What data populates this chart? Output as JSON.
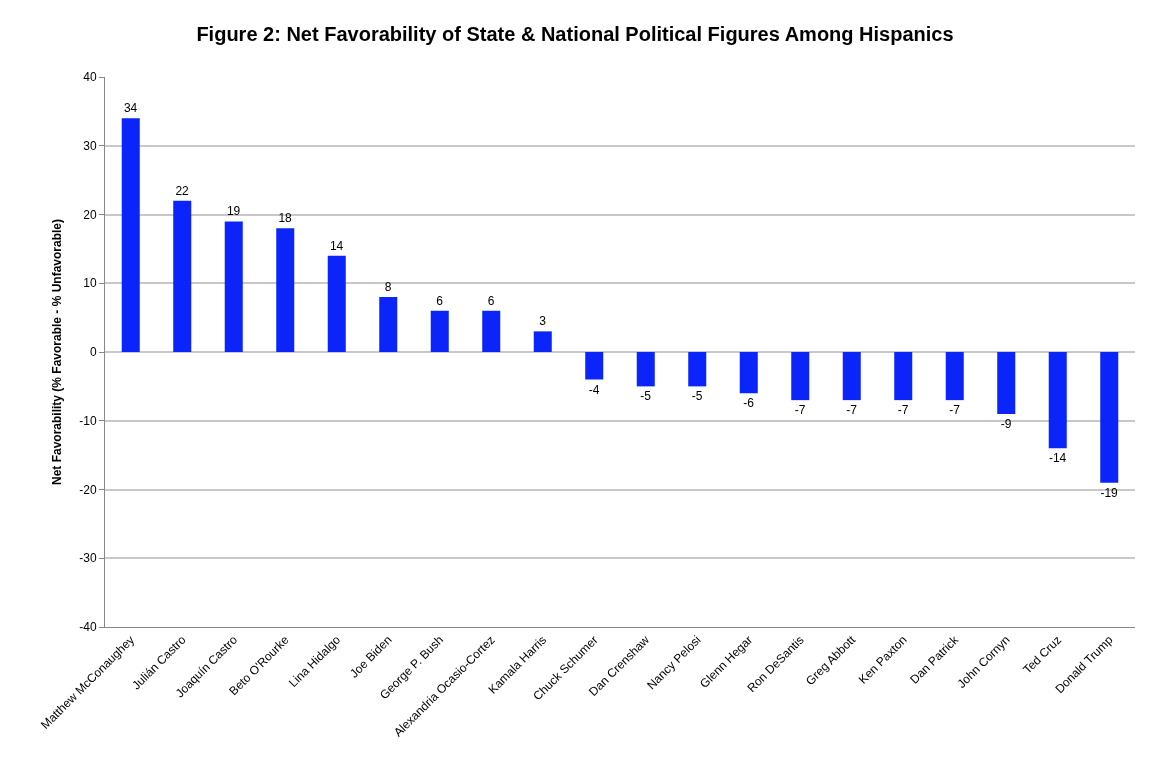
{
  "chart_data": {
    "type": "bar",
    "title": "Figure 2: Net Favorability of State & National Political Figures Among Hispanics",
    "ylabel": "Net Favorability (% Favorable - % Unfavorable)",
    "categories": [
      "Matthew McConaughey",
      "Julián Castro",
      "Joaquín Castro",
      "Beto O'Rourke",
      "Lina Hidalgo",
      "Joe Biden",
      "George P. Bush",
      "Alexandria Ocasio-Cortez",
      "Kamala Harris",
      "Chuck Schumer",
      "Dan Crenshaw",
      "Nancy Pelosi",
      "Glenn Hegar",
      "Ron DeSantis",
      "Greg Abbott",
      "Ken Paxton",
      "Dan Patrick",
      "John Cornyn",
      "Ted Cruz",
      "Donald Trump"
    ],
    "values": [
      34,
      22,
      19,
      18,
      14,
      8,
      6,
      6,
      3,
      -4,
      -5,
      -5,
      -6,
      -7,
      -7,
      -7,
      -7,
      -9,
      -14,
      -19
    ],
    "color": "#0a24fa",
    "ylim": [
      -40,
      40
    ],
    "yticks": [
      -40,
      -30,
      -20,
      -10,
      0,
      10,
      20,
      30,
      40
    ],
    "grid": "y",
    "data_labels": true
  }
}
